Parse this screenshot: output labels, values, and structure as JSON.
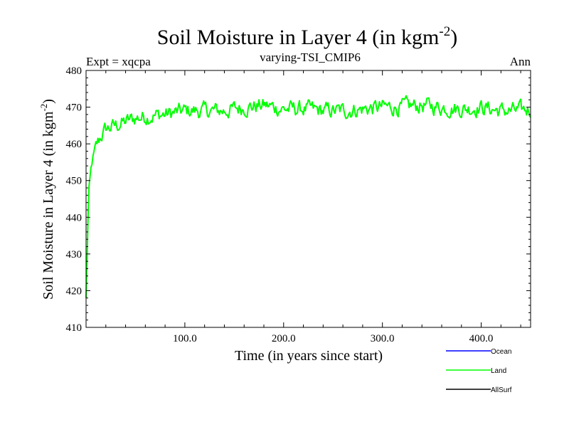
{
  "chart_data": {
    "type": "line",
    "title": "Soil Moisture in Layer 4 (in kgm",
    "title_superscript": "-2",
    "title_suffix": ")",
    "subtitle": "varying-TSI_CMIP6",
    "left_label": "Expt = xqcpa",
    "right_label": "Ann",
    "xlabel": "Time (in years since start)",
    "ylabel": "Soil Moisture in Layer 4 (in kgm",
    "ylabel_superscript": "-2",
    "ylabel_suffix": ")",
    "xlim": [
      0,
      450
    ],
    "ylim": [
      410,
      480
    ],
    "x_ticks": [
      100,
      200,
      300,
      400
    ],
    "x_tick_labels": [
      "100.0",
      "200.0",
      "300.0",
      "400.0"
    ],
    "y_ticks": [
      410,
      420,
      430,
      440,
      450,
      460,
      470,
      480
    ],
    "y_tick_labels": [
      "410",
      "420",
      "430",
      "440",
      "450",
      "460",
      "470",
      "480"
    ],
    "legend_position": "bottom-right, below plot",
    "series": [
      {
        "name": "Ocean",
        "color": "#0000ff",
        "values": []
      },
      {
        "name": "Land",
        "color": "#00ff00",
        "key_points": [
          [
            0,
            418
          ],
          [
            1,
            428
          ],
          [
            2,
            440
          ],
          [
            3,
            448
          ],
          [
            5,
            453
          ],
          [
            7,
            456
          ],
          [
            10,
            459
          ],
          [
            15,
            462
          ],
          [
            20,
            464
          ],
          [
            30,
            465
          ],
          [
            40,
            466
          ],
          [
            50,
            467
          ],
          [
            60,
            467.5
          ],
          [
            80,
            468
          ],
          [
            100,
            469
          ],
          [
            120,
            469
          ],
          [
            140,
            469
          ],
          [
            160,
            470
          ],
          [
            180,
            470.5
          ],
          [
            200,
            469.5
          ],
          [
            220,
            469.5
          ],
          [
            240,
            469
          ],
          [
            260,
            469
          ],
          [
            280,
            469.5
          ],
          [
            300,
            470
          ],
          [
            320,
            470
          ],
          [
            340,
            470.5
          ],
          [
            360,
            470
          ],
          [
            380,
            469.5
          ],
          [
            400,
            470
          ],
          [
            420,
            469
          ],
          [
            440,
            469
          ],
          [
            450,
            469.5
          ]
        ],
        "n_points": 451
      },
      {
        "name": "AllSurf",
        "color": "#000000",
        "values": []
      }
    ]
  }
}
